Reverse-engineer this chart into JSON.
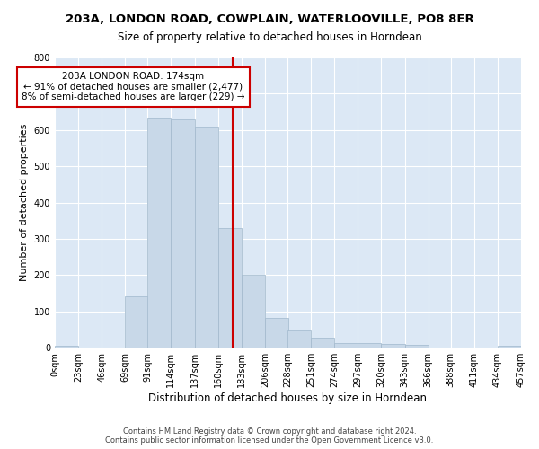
{
  "title": "203A, LONDON ROAD, COWPLAIN, WATERLOOVILLE, PO8 8ER",
  "subtitle": "Size of property relative to detached houses in Horndean",
  "xlabel": "Distribution of detached houses by size in Horndean",
  "ylabel": "Number of detached properties",
  "bar_color": "#c8d8e8",
  "bar_edge_color": "#a0b8cc",
  "vline_x": 174,
  "vline_color": "#cc0000",
  "annotation_text": "203A LONDON ROAD: 174sqm\n← 91% of detached houses are smaller (2,477)\n8% of semi-detached houses are larger (229) →",
  "annotation_box_color": "#ffffff",
  "annotation_box_edge": "#cc0000",
  "bin_edges": [
    0,
    23,
    46,
    69,
    91,
    114,
    137,
    160,
    183,
    206,
    228,
    251,
    274,
    297,
    320,
    343,
    366,
    388,
    411,
    434,
    457
  ],
  "bar_heights": [
    5,
    0,
    0,
    142,
    635,
    630,
    610,
    330,
    200,
    83,
    48,
    27,
    12,
    12,
    10,
    8,
    0,
    0,
    0,
    5
  ],
  "ylim": [
    0,
    800
  ],
  "yticks": [
    0,
    100,
    200,
    300,
    400,
    500,
    600,
    700,
    800
  ],
  "background_color": "#dce8f5",
  "footer_text": "Contains HM Land Registry data © Crown copyright and database right 2024.\nContains public sector information licensed under the Open Government Licence v3.0.",
  "tick_labels": [
    "0sqm",
    "23sqm",
    "46sqm",
    "69sqm",
    "91sqm",
    "114sqm",
    "137sqm",
    "160sqm",
    "183sqm",
    "206sqm",
    "228sqm",
    "251sqm",
    "274sqm",
    "297sqm",
    "320sqm",
    "343sqm",
    "366sqm",
    "388sqm",
    "411sqm",
    "434sqm",
    "457sqm"
  ],
  "figsize": [
    6.0,
    5.0
  ],
  "dpi": 100
}
